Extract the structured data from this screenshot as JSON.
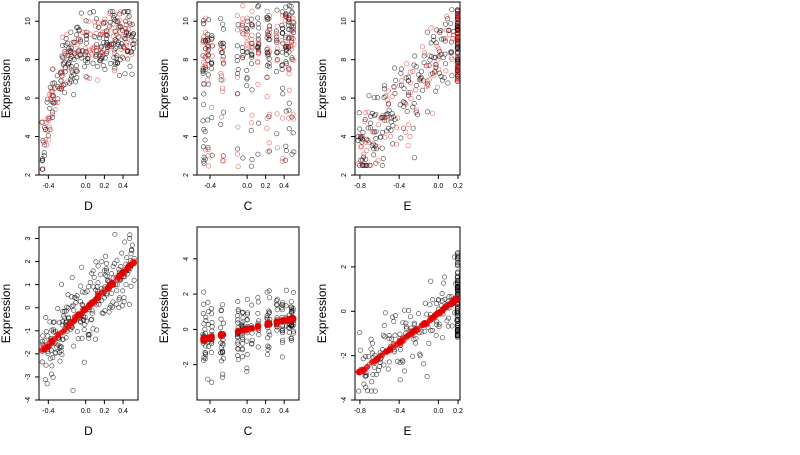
{
  "chart_data": [
    {
      "type": "scatter",
      "xlabel": "D",
      "ylabel": "Expression",
      "xlim": [
        -0.5,
        0.56
      ],
      "ylim": [
        2,
        11
      ],
      "xticks": [
        -0.4,
        0.0,
        0.2,
        0.4
      ],
      "xtick_labels": [
        "-0.4",
        "0.0",
        "0.2",
        "0.4"
      ],
      "yticks": [
        2,
        4,
        6,
        8,
        10
      ],
      "ytick_labels": [
        "2",
        "4",
        "6",
        "8",
        "10"
      ],
      "grid": false,
      "series": [
        {
          "color": "#000000",
          "marker": "open-circle",
          "shape": "saturating",
          "x_range": [
            -0.47,
            0.52
          ],
          "y_range": [
            2.6,
            10.5
          ]
        },
        {
          "color": "#e00000",
          "marker": "open-circle",
          "shape": "saturating",
          "x_range": [
            -0.47,
            0.52
          ],
          "y_range": [
            2.3,
            10.0
          ]
        }
      ]
    },
    {
      "type": "scatter",
      "xlabel": "C",
      "ylabel": "Expression",
      "xlim": [
        -0.54,
        0.56
      ],
      "ylim": [
        2,
        11
      ],
      "xticks": [
        -0.4,
        0.0,
        0.2,
        0.4
      ],
      "xtick_labels": [
        "-0.4",
        "0.0",
        "0.2",
        "0.4"
      ],
      "yticks": [
        2,
        4,
        6,
        8,
        10
      ],
      "ytick_labels": [
        "2",
        "4",
        "6",
        "8",
        "10"
      ],
      "grid": false,
      "series": [
        {
          "color": "#000000",
          "marker": "open-circle",
          "shape": "vertical-bands",
          "x_range": [
            -0.5,
            0.5
          ],
          "y_range": [
            2.3,
            10.8
          ]
        },
        {
          "color": "#e00000",
          "marker": "open-circle",
          "shape": "vertical-bands",
          "x_range": [
            -0.5,
            0.5
          ],
          "y_range": [
            2.3,
            10.0
          ]
        }
      ]
    },
    {
      "type": "scatter",
      "xlabel": "E",
      "ylabel": "Expression",
      "xlim": [
        -0.85,
        0.22
      ],
      "ylim": [
        2,
        11
      ],
      "xticks": [
        -0.8,
        -0.4,
        0.0,
        0.2
      ],
      "xtick_labels": [
        "-0.8",
        "-0.4",
        "0.0",
        "0.2"
      ],
      "yticks": [
        2,
        4,
        6,
        8,
        10
      ],
      "ytick_labels": [
        "2",
        "4",
        "6",
        "8",
        "10"
      ],
      "grid": false,
      "series": [
        {
          "color": "#000000",
          "marker": "open-circle",
          "shape": "rising-with-column",
          "x_range": [
            -0.82,
            0.2
          ],
          "y_range": [
            2.6,
            10.6
          ]
        },
        {
          "color": "#e00000",
          "marker": "open-circle",
          "shape": "rising-with-column",
          "x_range": [
            -0.82,
            0.2
          ],
          "y_range": [
            2.6,
            10.0
          ]
        }
      ]
    },
    {
      "type": "scatter",
      "xlabel": "D",
      "ylabel": "Expression",
      "xlim": [
        -0.5,
        0.56
      ],
      "ylim": [
        -4,
        3.5
      ],
      "xticks": [
        -0.4,
        0.0,
        0.2,
        0.4
      ],
      "xtick_labels": [
        "-0.4",
        "0.0",
        "0.2",
        "0.4"
      ],
      "yticks": [
        -4,
        -3,
        -2,
        -1,
        0,
        1,
        2,
        3
      ],
      "ytick_labels": [
        "-4",
        "-3",
        "-2",
        "-1",
        "0",
        "1",
        "2",
        "3"
      ],
      "grid": false,
      "series": [
        {
          "color": "#000000",
          "marker": "open-circle",
          "shape": "linear",
          "x_range": [
            -0.47,
            0.52
          ],
          "y_range": [
            -3.7,
            3.2
          ]
        },
        {
          "color": "#e00000",
          "marker": "filled-circle",
          "shape": "linear-fit",
          "x_range": [
            -0.47,
            0.52
          ],
          "y_range": [
            -1.9,
            2.0
          ]
        }
      ]
    },
    {
      "type": "scatter",
      "xlabel": "C",
      "ylabel": "Expression",
      "xlim": [
        -0.54,
        0.56
      ],
      "ylim": [
        -4,
        5.8
      ],
      "xticks": [
        -0.4,
        0.0,
        0.2,
        0.4
      ],
      "xtick_labels": [
        "-0.4",
        "0.0",
        "0.2",
        "0.4"
      ],
      "yticks": [
        -2,
        0,
        2,
        4
      ],
      "ytick_labels": [
        "-2",
        "0",
        "2",
        "4"
      ],
      "grid": false,
      "series": [
        {
          "color": "#000000",
          "marker": "open-circle",
          "shape": "vertical-bands",
          "x_range": [
            -0.5,
            0.5
          ],
          "y_range": [
            -3.0,
            5.2
          ]
        },
        {
          "color": "#e00000",
          "marker": "filled-circle",
          "shape": "linear-fit",
          "x_range": [
            -0.5,
            0.5
          ],
          "y_range": [
            -0.6,
            0.6
          ]
        }
      ]
    },
    {
      "type": "scatter",
      "xlabel": "E",
      "ylabel": "Expression",
      "xlim": [
        -0.85,
        0.22
      ],
      "ylim": [
        -4,
        3.8
      ],
      "xticks": [
        -0.8,
        -0.4,
        0.0,
        0.2
      ],
      "xtick_labels": [
        "-0.8",
        "-0.4",
        "0.0",
        "0.2"
      ],
      "yticks": [
        -4,
        -2,
        0,
        2
      ],
      "ytick_labels": [
        "-4",
        "-2",
        "0",
        "2"
      ],
      "grid": false,
      "series": [
        {
          "color": "#000000",
          "marker": "open-circle",
          "shape": "linear-with-column",
          "x_range": [
            -0.82,
            0.2
          ],
          "y_range": [
            -3.6,
            3.5
          ]
        },
        {
          "color": "#e00000",
          "marker": "filled-circle",
          "shape": "linear-fit",
          "x_range": [
            -0.82,
            0.2
          ],
          "y_range": [
            -2.8,
            0.6
          ]
        }
      ]
    }
  ]
}
